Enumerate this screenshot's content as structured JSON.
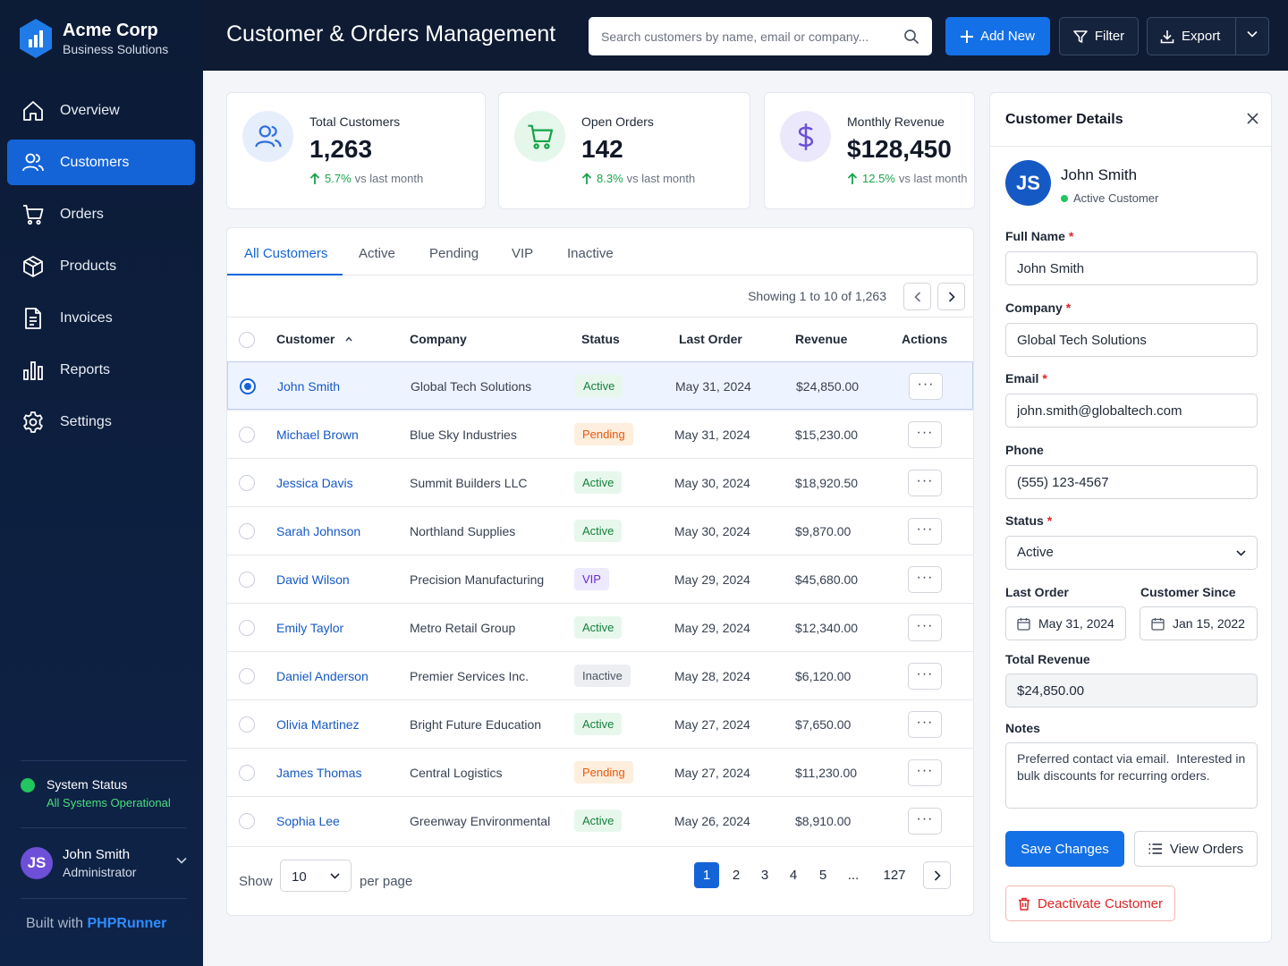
{
  "brand": {
    "name": "Acme Corp",
    "sub": "Business Solutions"
  },
  "nav": {
    "items": [
      {
        "label": "Overview",
        "icon": "home-icon"
      },
      {
        "label": "Customers",
        "icon": "users-icon",
        "active": true
      },
      {
        "label": "Orders",
        "icon": "cart-icon"
      },
      {
        "label": "Products",
        "icon": "box-icon"
      },
      {
        "label": "Invoices",
        "icon": "document-icon"
      },
      {
        "label": "Reports",
        "icon": "bar-chart-icon"
      },
      {
        "label": "Settings",
        "icon": "gear-icon"
      }
    ]
  },
  "system": {
    "title": "System Status",
    "status": "All Systems Operational"
  },
  "user": {
    "initials": "JS",
    "name": "John Smith",
    "role": "Administrator"
  },
  "built": {
    "prefix": "Built with",
    "brand": "PHPRunner"
  },
  "header": {
    "title": "Customer & Orders Management",
    "search_placeholder": "Search customers by name, email or company...",
    "add_label": "Add New",
    "filter_label": "Filter",
    "export_label": "Export"
  },
  "stats": [
    {
      "label": "Total Customers",
      "value": "1,263",
      "pct": "5.7%",
      "trend": "vs last month",
      "icon": "users-icon",
      "color": "#2f6fe0",
      "bg": "#e6eefc"
    },
    {
      "label": "Open Orders",
      "value": "142",
      "pct": "8.3%",
      "trend": "vs last month",
      "icon": "cart-icon",
      "color": "#16a34a",
      "bg": "#e5f6ea"
    },
    {
      "label": "Monthly Revenue",
      "value": "$128,450",
      "pct": "12.5%",
      "trend": "vs last month",
      "icon": "dollar-icon",
      "color": "#6d4fd8",
      "bg": "#ece8fb"
    }
  ],
  "tabs": [
    "All Customers",
    "Active",
    "Pending",
    "VIP",
    "Inactive"
  ],
  "showing": "Showing 1 to 10 of 1,263",
  "columns": {
    "customer": "Customer",
    "company": "Company",
    "status": "Status",
    "last_order": "Last Order",
    "revenue": "Revenue",
    "actions": "Actions"
  },
  "rows": [
    {
      "name": "John Smith",
      "company": "Global Tech Solutions",
      "status": "Active",
      "date": "May 31, 2024",
      "revenue": "$24,850.00",
      "selected": true
    },
    {
      "name": "Michael Brown",
      "company": "Blue Sky Industries",
      "status": "Pending",
      "date": "May 31, 2024",
      "revenue": "$15,230.00"
    },
    {
      "name": "Jessica Davis",
      "company": "Summit Builders LLC",
      "status": "Active",
      "date": "May 30, 2024",
      "revenue": "$18,920.50"
    },
    {
      "name": "Sarah Johnson",
      "company": "Northland Supplies",
      "status": "Active",
      "date": "May 30, 2024",
      "revenue": "$9,870.00"
    },
    {
      "name": "David Wilson",
      "company": "Precision Manufacturing",
      "status": "VIP",
      "date": "May 29, 2024",
      "revenue": "$45,680.00"
    },
    {
      "name": "Emily Taylor",
      "company": "Metro Retail Group",
      "status": "Active",
      "date": "May 29, 2024",
      "revenue": "$12,340.00"
    },
    {
      "name": "Daniel Anderson",
      "company": "Premier Services Inc.",
      "status": "Inactive",
      "date": "May 28, 2024",
      "revenue": "$6,120.00"
    },
    {
      "name": "Olivia Martinez",
      "company": "Bright Future Education",
      "status": "Active",
      "date": "May 27, 2024",
      "revenue": "$7,650.00"
    },
    {
      "name": "James Thomas",
      "company": "Central Logistics",
      "status": "Pending",
      "date": "May 27, 2024",
      "revenue": "$11,230.00"
    },
    {
      "name": "Sophia Lee",
      "company": "Greenway Environmental",
      "status": "Active",
      "date": "May 26, 2024",
      "revenue": "$8,910.00"
    }
  ],
  "pager": {
    "show": "Show",
    "per_page_value": "10",
    "per_page": "per page",
    "pages": [
      "1",
      "2",
      "3",
      "4",
      "5",
      "...",
      "127"
    ],
    "current": "1"
  },
  "detail": {
    "title": "Customer Details",
    "initials": "JS",
    "name": "John Smith",
    "state": "Active Customer",
    "full_name_label": "Full Name",
    "full_name": "John Smith",
    "company_label": "Company",
    "company": "Global Tech Solutions",
    "email_label": "Email",
    "email": "john.smith@globaltech.com",
    "phone_label": "Phone",
    "phone": "(555) 123-4567",
    "status_label": "Status",
    "status": "Active",
    "last_order_label": "Last Order",
    "last_order": "May 31, 2024",
    "since_label": "Customer Since",
    "since": "Jan 15, 2022",
    "revenue_label": "Total Revenue",
    "revenue": "$24,850.00",
    "notes_label": "Notes",
    "notes": "Preferred contact via email.  Interested in bulk discounts for recurring orders.",
    "save_label": "Save Changes",
    "orders_label": "View Orders",
    "deactivate_label": "Deactivate Customer"
  }
}
